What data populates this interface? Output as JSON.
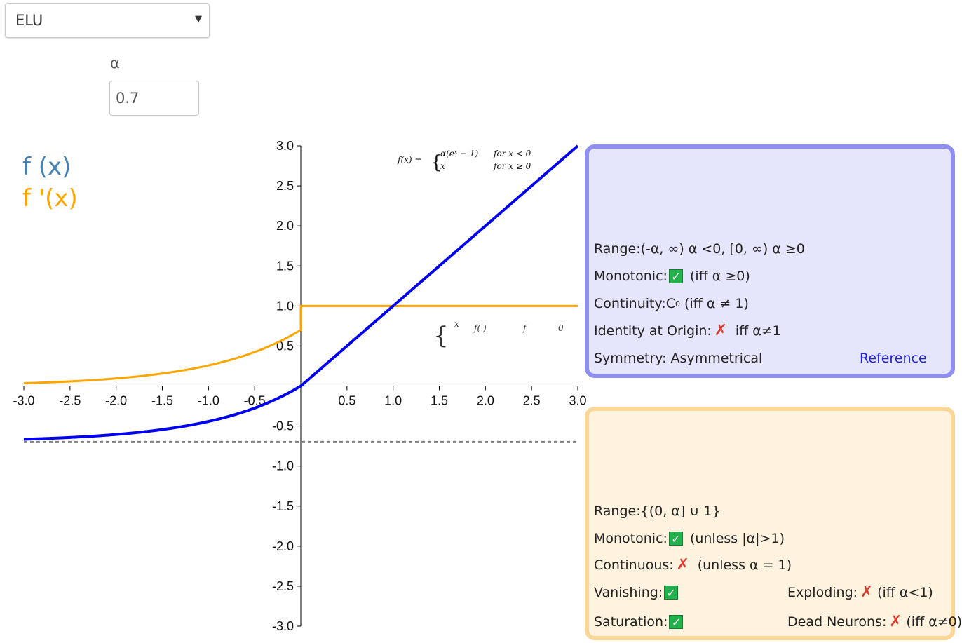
{
  "controls": {
    "function_select": "ELU",
    "alpha_label": "α",
    "alpha_value": "0.7"
  },
  "legend": {
    "f_label": "f (x)",
    "fprime_label": "f '(x)",
    "f_color": "#4682b4",
    "fprime_color": "#ffa500"
  },
  "formula": {
    "lhs": "f(x) =",
    "case1_expr": "α(eˣ − 1)",
    "case1_cond": "for x < 0",
    "case2_expr": "x",
    "case2_cond": "for x ≥ 0",
    "deriv_x": "x",
    "deriv_f": "f( )",
    "deriv_f2": "f",
    "deriv_0": "0"
  },
  "chart_data": {
    "type": "line",
    "xlim": [
      -3.0,
      3.0
    ],
    "ylim": [
      -3.0,
      3.0
    ],
    "x_ticks": [
      "-3.0",
      "-2.5",
      "-2.0",
      "-1.5",
      "-1.0",
      "-0.5",
      "0.5",
      "1.0",
      "1.5",
      "2.0",
      "2.5",
      "3.0"
    ],
    "y_ticks": [
      "3.0",
      "2.5",
      "2.0",
      "1.5",
      "1.0",
      "0.5",
      "-0.5",
      "-1.0",
      "-1.5",
      "-2.0",
      "-2.5",
      "-3.0"
    ],
    "alpha": 0.7,
    "series": [
      {
        "function": "f(x) = α(e^x − 1) for x<0, x for x≥0",
        "color": "#0000ee",
        "x": [
          -3.0,
          -2.5,
          -2.0,
          -1.5,
          -1.0,
          -0.5,
          0.0,
          0.5,
          1.0,
          1.5,
          2.0,
          2.5,
          3.0
        ],
        "y": [
          -0.665,
          -0.643,
          -0.605,
          -0.544,
          -0.442,
          -0.275,
          0.0,
          0.5,
          1.0,
          1.5,
          2.0,
          2.5,
          3.0
        ]
      },
      {
        "function": "f'(x) = α e^x for x<0, 1 for x≥0",
        "color": "#ffa500",
        "x": [
          -3.0,
          -2.5,
          -2.0,
          -1.5,
          -1.0,
          -0.5,
          0.0,
          0.0,
          0.5,
          1.0,
          1.5,
          2.0,
          2.5,
          3.0
        ],
        "y": [
          0.035,
          0.057,
          0.095,
          0.156,
          0.258,
          0.425,
          0.7,
          1.0,
          1.0,
          1.0,
          1.0,
          1.0,
          1.0,
          1.0
        ]
      }
    ],
    "asymptote": {
      "y": -0.7,
      "color": "#808080",
      "style": "dashed"
    }
  },
  "panel_f": {
    "range_label": "Range:",
    "range_value": "(-α, ∞) α <0, [0, ∞) α ≥0",
    "monotonic_label": "Monotonic:",
    "monotonic_status": "check",
    "monotonic_note": "(iff α ≥0)",
    "continuity_label": "Continuity:",
    "continuity_value": "C",
    "continuity_sup": "0",
    "continuity_note": "(iff α ≠ 1)",
    "identity_label": "Identity at Origin:",
    "identity_status": "cross",
    "identity_note": "iff α≠1",
    "symmetry_label": "Symmetry:",
    "symmetry_value": "Asymmetrical",
    "reference_link": "Reference"
  },
  "panel_fp": {
    "range_label": "Range:",
    "range_value": "{(0, α] ∪ 1}",
    "monotonic_label": "Monotonic:",
    "monotonic_status": "check",
    "monotonic_note": "(unless |α|>1)",
    "continuous_label": "Continuous:",
    "continuous_status": "cross",
    "continuous_note": "(unless α = 1)",
    "vanishing_label": "Vanishing:",
    "vanishing_status": "check",
    "exploding_label": "Exploding:",
    "exploding_status": "cross",
    "exploding_note": "(iff α<1)",
    "saturation_label": "Saturation:",
    "saturation_status": "check",
    "dead_label": "Dead Neurons:",
    "dead_status": "cross",
    "dead_note": "(iff α≠0)"
  },
  "icons": {
    "check": "✓",
    "cross": "✗"
  }
}
